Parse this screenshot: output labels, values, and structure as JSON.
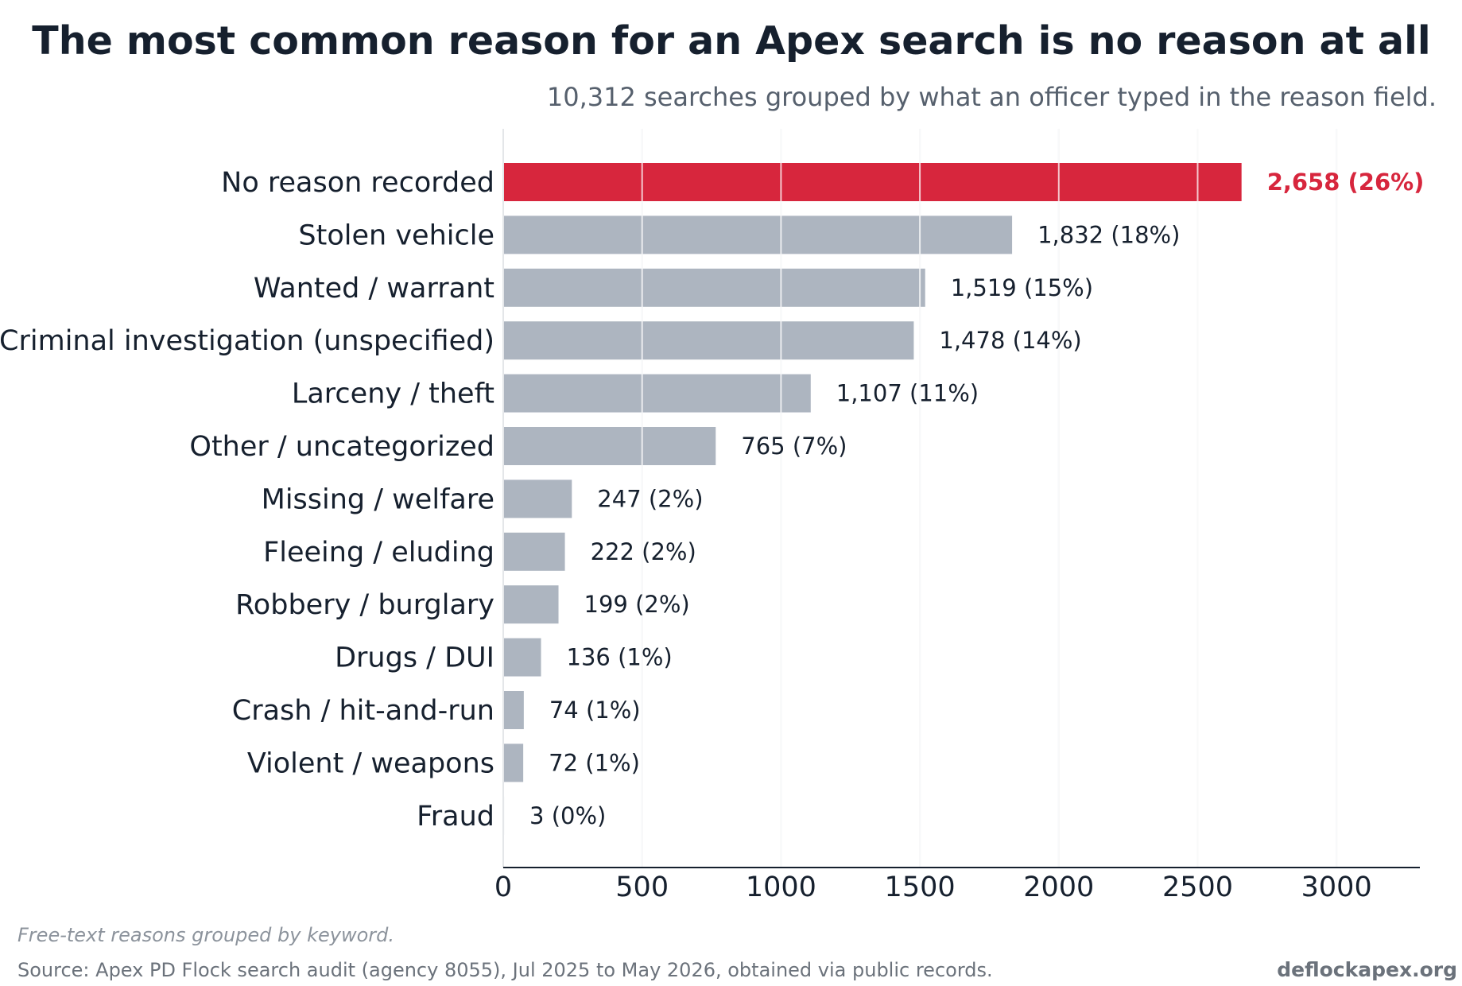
{
  "chart_data": {
    "type": "bar",
    "orientation": "horizontal",
    "title": "The most common reason for an Apex search is no reason at all",
    "subtitle": "10,312 searches grouped by what an officer typed in the reason field.",
    "xlabel": "",
    "ylabel": "",
    "xlim": [
      0,
      3300
    ],
    "xticks": [
      0,
      500,
      1000,
      1500,
      2000,
      2500,
      3000
    ],
    "grid": "vertical",
    "categories": [
      "No reason recorded",
      "Stolen vehicle",
      "Wanted / warrant",
      "Criminal investigation (unspecified)",
      "Larceny / theft",
      "Other / uncategorized",
      "Missing / welfare",
      "Fleeing / eluding",
      "Robbery / burglary",
      "Drugs / DUI",
      "Crash / hit-and-run",
      "Violent / weapons",
      "Fraud"
    ],
    "values": [
      2658,
      1832,
      1519,
      1478,
      1107,
      765,
      247,
      222,
      199,
      136,
      74,
      72,
      3
    ],
    "value_labels": [
      "2,658  (26%)",
      "1,832  (18%)",
      "1,519  (15%)",
      "1,478  (14%)",
      "1,107  (11%)",
      "765  (7%)",
      "247  (2%)",
      "222  (2%)",
      "199  (2%)",
      "136  (1%)",
      "74  (1%)",
      "72  (1%)",
      "3  (0%)"
    ],
    "highlight_index": 0,
    "colors": {
      "highlight": "#d7263d",
      "default": "#adb5c0",
      "grid": "#e4e6e9",
      "axis": "#16202e"
    }
  },
  "footer": {
    "note": "Free-text reasons grouped by keyword.",
    "source": "Source: Apex PD Flock search audit (agency 8055), Jul 2025 to May 2026, obtained via public records.",
    "brand": "deflockapex.org"
  }
}
